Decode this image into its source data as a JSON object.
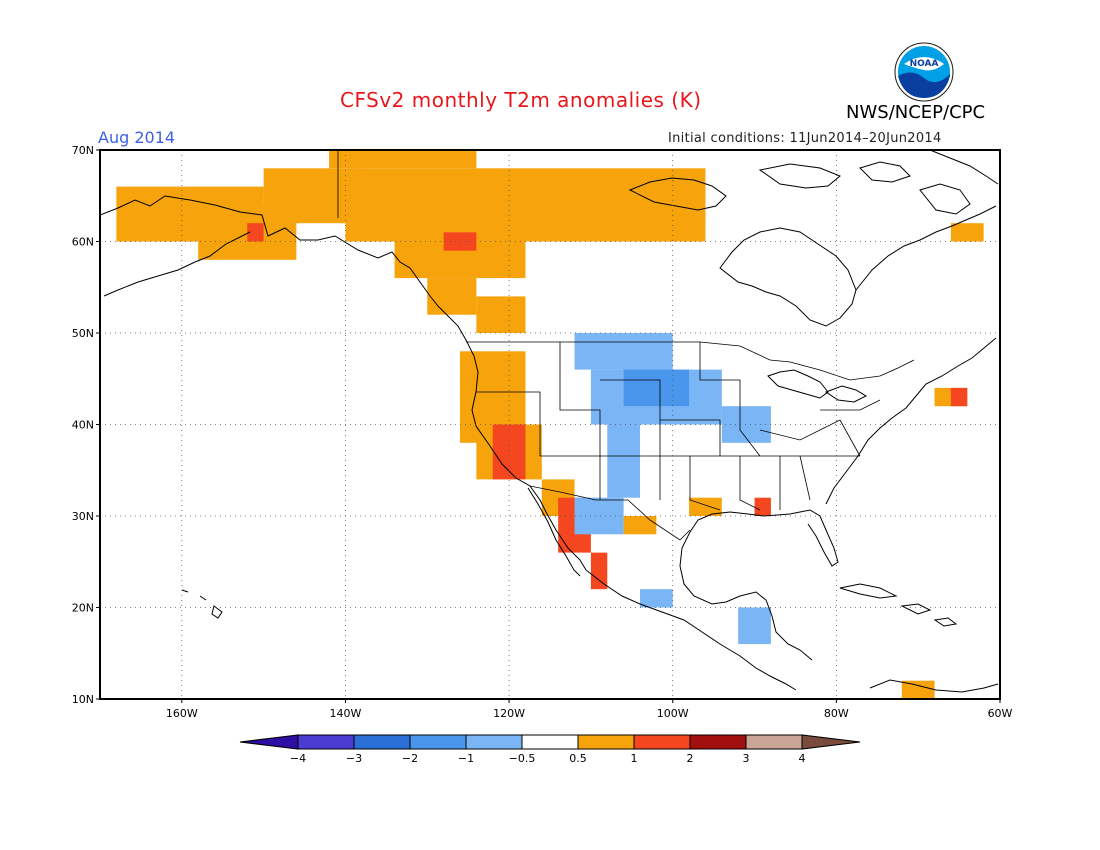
{
  "header": {
    "title": "CFSv2 monthly T2m anomalies (K)",
    "month": "Aug 2014",
    "initial_conditions": "Initial conditions: 11Jun2014–20Jun2014",
    "agency": "NWS/NCEP/CPC",
    "logo_text": "NOAA"
  },
  "map": {
    "lat_labels": [
      "70N",
      "60N",
      "50N",
      "40N",
      "30N",
      "20N",
      "10N"
    ],
    "lon_labels": [
      "160W",
      "140W",
      "120W",
      "100W",
      "80W",
      "60W"
    ],
    "lat_range": [
      10,
      70
    ],
    "lon_range": [
      -170,
      -60
    ],
    "grid": "dotted"
  },
  "colorbar": {
    "tick_labels": [
      "−4",
      "−3",
      "−2",
      "−1",
      "−0.5",
      "0.5",
      "1",
      "2",
      "3",
      "4"
    ],
    "colors": [
      "#2e0fa6",
      "#4b3bd1",
      "#2a6fd6",
      "#4a96ec",
      "#7ab6f5",
      "#ffffff",
      "#f7a30c",
      "#f4471f",
      "#a20f0f",
      "#c9a497",
      "#7a4a3c"
    ]
  },
  "anomaly_colors": {
    "warm_05_1": "#f7a30c",
    "warm_1_2": "#f4471f",
    "cool_05_1": "#7ab6f5",
    "cool_1_2": "#4a96ec"
  }
}
